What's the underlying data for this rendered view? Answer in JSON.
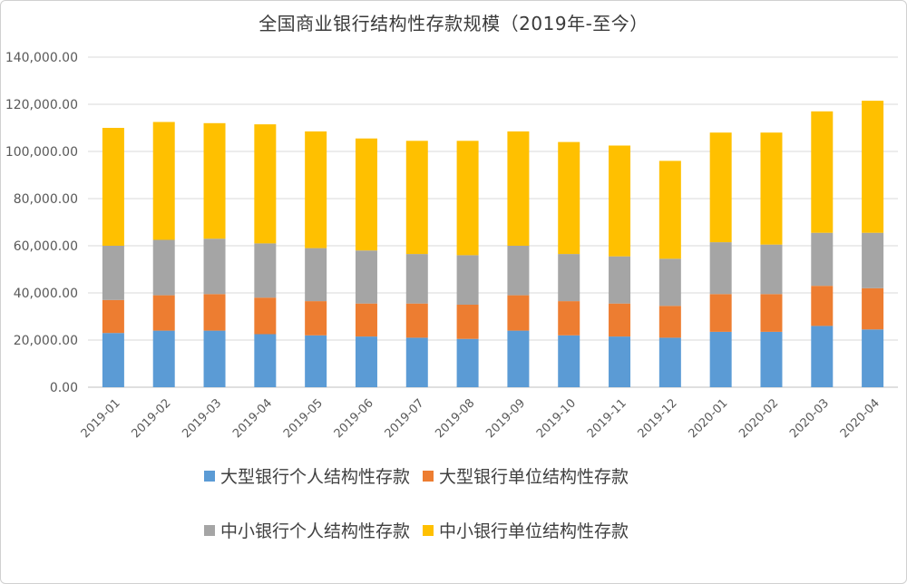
{
  "chart_data": {
    "type": "bar",
    "stacked": true,
    "title": "全国商业银行结构性存款规模（2019年-至今）",
    "categories": [
      "2019-01",
      "2019-02",
      "2019-03",
      "2019-04",
      "2019-05",
      "2019-06",
      "2019-07",
      "2019-08",
      "2019-09",
      "2019-10",
      "2019-11",
      "2019-12",
      "2020-01",
      "2020-02",
      "2020-03",
      "2020-04"
    ],
    "ylim": [
      0,
      140000
    ],
    "yticks": [
      "0.00",
      "20,000.00",
      "40,000.00",
      "60,000.00",
      "80,000.00",
      "100,000.00",
      "120,000.00",
      "140,000.00"
    ],
    "grid": true,
    "legend_position": "bottom",
    "series": [
      {
        "name": "大型银行个人结构性存款",
        "color": "#5b9bd5",
        "values": [
          23000,
          24000,
          24000,
          22500,
          22000,
          21500,
          21000,
          20500,
          24000,
          22000,
          21500,
          21000,
          23500,
          23500,
          26000,
          24500
        ]
      },
      {
        "name": "大型银行单位结构性存款",
        "color": "#ed7d31",
        "values": [
          14000,
          15000,
          15500,
          15500,
          14500,
          14000,
          14500,
          14500,
          15000,
          14500,
          14000,
          13500,
          16000,
          16000,
          17000,
          17500
        ]
      },
      {
        "name": "中小银行个人结构性存款",
        "color": "#a5a5a5",
        "values": [
          23000,
          23500,
          23500,
          23000,
          22500,
          22500,
          21000,
          21000,
          21000,
          20000,
          20000,
          20000,
          22000,
          21000,
          22500,
          23500
        ]
      },
      {
        "name": "中小银行单位结构性存款",
        "color": "#ffc000",
        "values": [
          50000,
          50000,
          49000,
          50500,
          49500,
          47500,
          48000,
          48500,
          48500,
          47500,
          47000,
          41500,
          46500,
          47500,
          51500,
          56000
        ]
      }
    ]
  }
}
